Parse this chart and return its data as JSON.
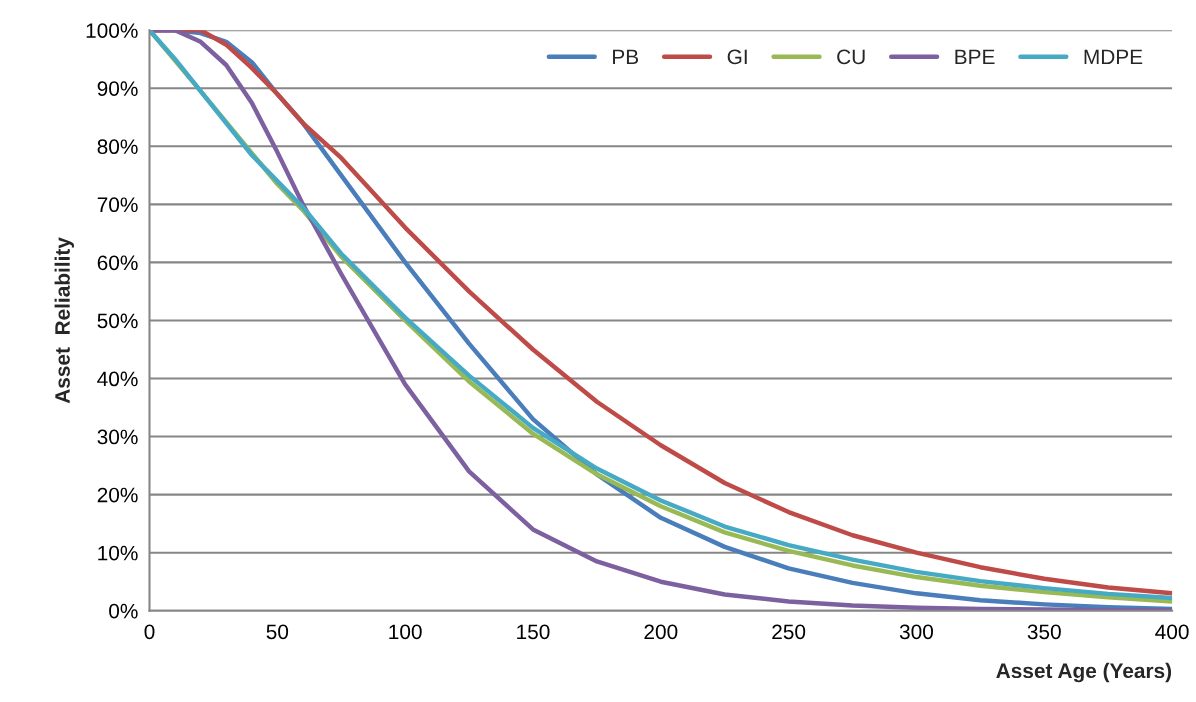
{
  "chart_data": {
    "type": "line",
    "xlabel": "Asset Age (Years)",
    "ylabel": "Asset  Reliability",
    "x": [
      0,
      10,
      20,
      30,
      40,
      50,
      60,
      75,
      100,
      125,
      150,
      175,
      200,
      225,
      250,
      275,
      300,
      325,
      350,
      375,
      400
    ],
    "series": [
      {
        "name": "PB",
        "color": "#4a7ebb",
        "values": [
          100,
          100,
          99.5,
          98,
          94.5,
          89,
          84,
          75,
          60,
          46,
          33,
          23.5,
          16,
          11,
          7.3,
          4.8,
          3,
          1.8,
          1.1,
          0.6,
          0.3
        ]
      },
      {
        "name": "GI",
        "color": "#be4b48",
        "values": [
          100,
          100,
          100,
          97.5,
          93.5,
          89,
          84,
          78,
          66,
          55,
          45,
          36,
          28.5,
          22,
          17,
          13,
          10,
          7.5,
          5.5,
          4,
          3
        ]
      },
      {
        "name": "CU",
        "color": "#98b954",
        "values": [
          100,
          null,
          89.5,
          null,
          null,
          73.5,
          69,
          61,
          50,
          39.5,
          30.5,
          23.5,
          18,
          13.5,
          10.3,
          7.8,
          5.8,
          4.3,
          3.2,
          2.3,
          1.6
        ]
      },
      {
        "name": "BPE",
        "color": "#7d60a0",
        "values": [
          100,
          100,
          98,
          94,
          87.5,
          79,
          70,
          58,
          39,
          24,
          14,
          8.5,
          5,
          2.8,
          1.6,
          0.9,
          0.5,
          0.3,
          0.2,
          0.1,
          0.1
        ]
      },
      {
        "name": "MDPE",
        "color": "#46aac5",
        "values": [
          100,
          95,
          89.5,
          84,
          78.5,
          74,
          69.5,
          61.5,
          50.5,
          40.5,
          31.5,
          24.5,
          19,
          14.5,
          11.3,
          8.8,
          6.7,
          5.1,
          3.9,
          2.9,
          2.2
        ]
      }
    ],
    "xlim": [
      0,
      400
    ],
    "xticks": [
      0,
      50,
      100,
      150,
      200,
      250,
      300,
      350,
      400
    ],
    "ylim": [
      0,
      100
    ],
    "yticks": [
      {
        "value": 0,
        "label": "0%"
      },
      {
        "value": 10,
        "label": "10%"
      },
      {
        "value": 20,
        "label": "20%"
      },
      {
        "value": 30,
        "label": "30%"
      },
      {
        "value": 40,
        "label": "40%"
      },
      {
        "value": 50,
        "label": "50%"
      },
      {
        "value": 60,
        "label": "60%"
      },
      {
        "value": 70,
        "label": "70%"
      },
      {
        "value": 80,
        "label": "80%"
      },
      {
        "value": 90,
        "label": "90%"
      },
      {
        "value": 100,
        "label": "100%"
      }
    ],
    "grid": "y",
    "legend": "top right",
    "marker": "none",
    "line_style": "solid"
  }
}
